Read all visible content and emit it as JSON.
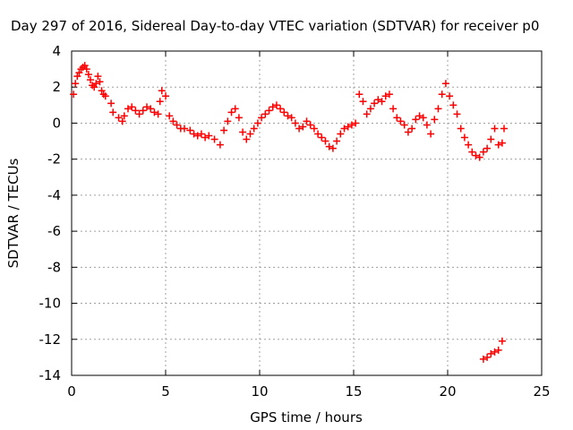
{
  "chart_data": {
    "type": "scatter",
    "title": "Day 297 of 2016, Sidereal Day-to-day VTEC variation (SDTVAR) for receiver p0",
    "xlabel": "GPS time / hours",
    "ylabel": "SDTVAR / TECUs",
    "xlim": [
      0,
      25
    ],
    "ylim": [
      -14,
      4
    ],
    "x_ticks": [
      "0",
      "5",
      "10",
      "15",
      "20",
      "25"
    ],
    "y_ticks": [
      "4",
      "2",
      "0",
      "-2",
      "-4",
      "-6",
      "-8",
      "-10",
      "-12",
      "-14"
    ],
    "grid": true,
    "marker": "+",
    "color": "#ff0000",
    "series": [
      {
        "name": "SDTVAR",
        "x": [
          0.1,
          0.2,
          0.3,
          0.4,
          0.5,
          0.6,
          0.7,
          0.8,
          0.9,
          1.0,
          1.1,
          1.2,
          1.3,
          1.4,
          1.5,
          1.6,
          1.7,
          1.8,
          2.1,
          2.2,
          2.5,
          2.7,
          2.8,
          3.0,
          3.2,
          3.4,
          3.6,
          3.8,
          4.0,
          4.2,
          4.4,
          4.6,
          4.7,
          4.8,
          5.0,
          5.2,
          5.4,
          5.6,
          5.8,
          6.0,
          6.3,
          6.5,
          6.7,
          6.9,
          7.1,
          7.3,
          7.6,
          7.9,
          8.1,
          8.3,
          8.5,
          8.7,
          8.9,
          9.1,
          9.3,
          9.5,
          9.7,
          9.9,
          10.1,
          10.3,
          10.5,
          10.7,
          10.9,
          11.1,
          11.3,
          11.5,
          11.7,
          11.9,
          12.1,
          12.3,
          12.5,
          12.7,
          12.9,
          13.1,
          13.3,
          13.5,
          13.7,
          13.9,
          14.1,
          14.3,
          14.5,
          14.7,
          14.9,
          15.1,
          15.3,
          15.5,
          15.7,
          15.9,
          16.1,
          16.3,
          16.5,
          16.7,
          16.9,
          17.1,
          17.3,
          17.5,
          17.7,
          17.9,
          18.1,
          18.3,
          18.5,
          18.7,
          18.9,
          19.1,
          19.3,
          19.5,
          19.7,
          19.9,
          20.1,
          20.3,
          20.5,
          20.7,
          20.9,
          21.1,
          21.3,
          21.5,
          21.7,
          21.9,
          22.1,
          22.3,
          22.5,
          22.7,
          22.9,
          23.0,
          21.9,
          22.1,
          22.3,
          22.5,
          22.7,
          22.9
        ],
        "y": [
          1.6,
          2.2,
          2.6,
          2.8,
          3.0,
          3.1,
          3.2,
          3.0,
          2.7,
          2.4,
          2.1,
          2.0,
          2.2,
          2.6,
          2.3,
          1.8,
          1.6,
          1.5,
          1.1,
          0.6,
          0.3,
          0.1,
          0.4,
          0.8,
          0.9,
          0.7,
          0.5,
          0.7,
          0.9,
          0.8,
          0.6,
          0.5,
          1.2,
          1.8,
          1.5,
          0.4,
          0.1,
          -0.1,
          -0.3,
          -0.3,
          -0.4,
          -0.6,
          -0.7,
          -0.6,
          -0.8,
          -0.7,
          -0.9,
          -1.2,
          -0.4,
          0.1,
          0.6,
          0.8,
          0.3,
          -0.5,
          -0.9,
          -0.6,
          -0.3,
          0.0,
          0.3,
          0.5,
          0.7,
          0.9,
          1.0,
          0.8,
          0.6,
          0.4,
          0.3,
          0.0,
          -0.3,
          -0.2,
          0.1,
          -0.1,
          -0.3,
          -0.6,
          -0.8,
          -1.0,
          -1.3,
          -1.4,
          -1.0,
          -0.6,
          -0.3,
          -0.2,
          -0.1,
          0.0,
          1.6,
          1.2,
          0.5,
          0.8,
          1.1,
          1.3,
          1.2,
          1.5,
          1.6,
          0.8,
          0.3,
          0.1,
          -0.1,
          -0.5,
          -0.3,
          0.2,
          0.4,
          0.3,
          -0.1,
          -0.6,
          0.2,
          0.8,
          1.6,
          2.2,
          1.5,
          1.0,
          0.5,
          -0.3,
          -0.8,
          -1.2,
          -1.6,
          -1.8,
          -1.9,
          -1.6,
          -1.4,
          -0.9,
          -0.3,
          -1.2,
          -1.1,
          -0.3,
          -13.1,
          -13.0,
          -12.8,
          -12.7,
          -12.6,
          -12.1
        ]
      }
    ]
  }
}
